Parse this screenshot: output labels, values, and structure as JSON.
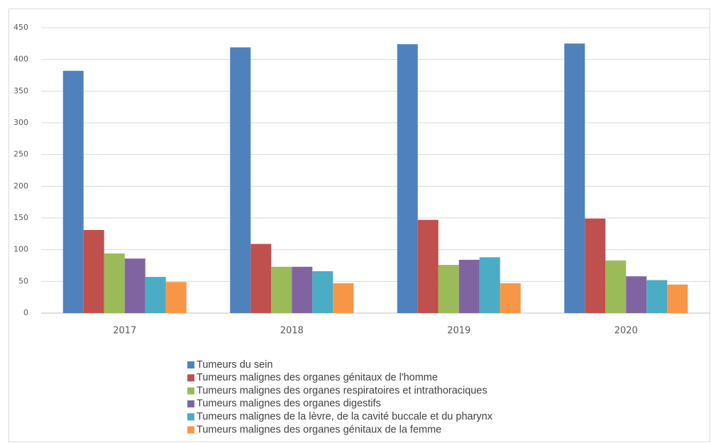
{
  "chart_data": {
    "type": "bar",
    "categories": [
      "2017",
      "2018",
      "2019",
      "2020"
    ],
    "series": [
      {
        "name": "Tumeurs du sein",
        "color": "#4f81bd",
        "values": [
          382,
          419,
          424,
          425
        ]
      },
      {
        "name": "Tumeurs malignes des organes génitaux de l'homme",
        "color": "#c0504d",
        "values": [
          131,
          109,
          147,
          149
        ]
      },
      {
        "name": "Tumeurs malignes des organes respiratoires et intrathoraciques",
        "color": "#9bbb59",
        "values": [
          94,
          73,
          76,
          83
        ]
      },
      {
        "name": "Tumeurs malignes des organes digestifs",
        "color": "#8064a2",
        "values": [
          86,
          73,
          84,
          58
        ]
      },
      {
        "name": "Tumeurs malignes de la lèvre, de la cavité buccale et du pharynx",
        "color": "#4bacc6",
        "values": [
          57,
          66,
          88,
          52
        ]
      },
      {
        "name": "Tumeurs malignes des organes génitaux de la femme",
        "color": "#f79646",
        "values": [
          49,
          47,
          47,
          45
        ]
      }
    ],
    "ylim": [
      0,
      450
    ],
    "yticks": [
      0,
      50,
      100,
      150,
      200,
      250,
      300,
      350,
      400,
      450
    ],
    "grid": true,
    "legend": "bottom"
  }
}
